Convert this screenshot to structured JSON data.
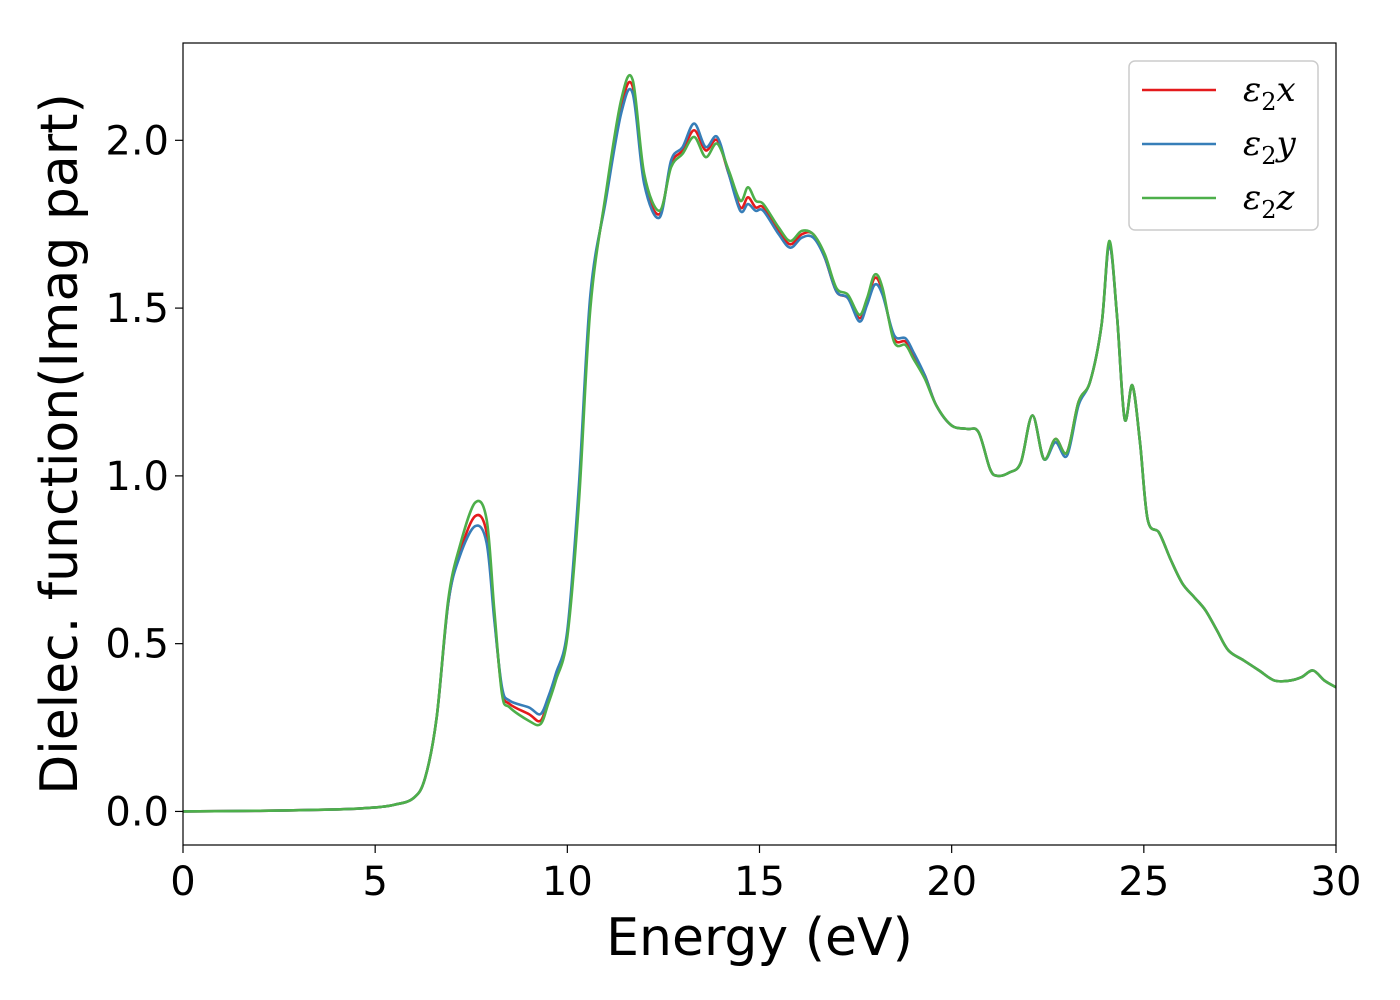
{
  "chart_data": {
    "type": "line",
    "title": "",
    "xlabel": "Energy (eV)",
    "ylabel": "Dielec. function(Imag part)",
    "xlim": [
      0,
      30
    ],
    "ylim": [
      -0.1,
      2.29
    ],
    "xticks": [
      "0",
      "5",
      "10",
      "15",
      "20",
      "25",
      "30"
    ],
    "yticks": [
      "0.0",
      "0.5",
      "1.0",
      "1.5",
      "2.0"
    ],
    "grid": false,
    "legend_position": "top-right",
    "series": [
      {
        "name": "x",
        "legend_main": "ε",
        "legend_sub": "2",
        "legend_tail": "x",
        "color": "#e41a1c",
        "x": [
          0,
          2,
          4,
          5,
          5.5,
          6,
          6.3,
          6.6,
          6.9,
          7.2,
          7.6,
          7.9,
          8.1,
          8.3,
          8.5,
          9.0,
          9.3,
          9.5,
          9.7,
          10.0,
          10.3,
          10.6,
          11.0,
          11.4,
          11.7,
          12.0,
          12.4,
          12.7,
          13.0,
          13.3,
          13.6,
          13.9,
          14.2,
          14.5,
          14.7,
          14.9,
          15.1,
          15.5,
          15.8,
          16.1,
          16.4,
          16.7,
          17.0,
          17.3,
          17.6,
          17.8,
          18.0,
          18.2,
          18.5,
          18.8,
          19.0,
          19.3,
          19.6,
          20.0,
          20.4,
          20.7,
          21.0,
          21.2,
          21.5,
          21.8,
          22.1,
          22.4,
          22.7,
          23.0,
          23.3,
          23.6,
          23.9,
          24.1,
          24.3,
          24.5,
          24.7,
          24.9,
          25.1,
          25.4,
          25.7,
          26.0,
          26.3,
          26.6,
          26.9,
          27.2,
          27.6,
          28.0,
          28.4,
          28.8,
          29.1,
          29.4,
          29.7,
          30
        ],
        "y": [
          0.0,
          0.002,
          0.006,
          0.012,
          0.02,
          0.04,
          0.1,
          0.28,
          0.62,
          0.77,
          0.88,
          0.83,
          0.58,
          0.36,
          0.32,
          0.29,
          0.27,
          0.33,
          0.4,
          0.53,
          0.95,
          1.52,
          1.83,
          2.1,
          2.16,
          1.88,
          1.78,
          1.93,
          1.97,
          2.03,
          1.97,
          2.0,
          1.9,
          1.8,
          1.83,
          1.8,
          1.8,
          1.73,
          1.69,
          1.72,
          1.72,
          1.65,
          1.55,
          1.53,
          1.47,
          1.52,
          1.59,
          1.55,
          1.41,
          1.4,
          1.36,
          1.3,
          1.21,
          1.15,
          1.14,
          1.13,
          1.02,
          1.0,
          1.01,
          1.04,
          1.18,
          1.05,
          1.11,
          1.07,
          1.22,
          1.28,
          1.45,
          1.69,
          1.48,
          1.17,
          1.27,
          1.1,
          0.87,
          0.83,
          0.75,
          0.68,
          0.64,
          0.6,
          0.54,
          0.48,
          0.45,
          0.42,
          0.39,
          0.39,
          0.4,
          0.42,
          0.39,
          0.37
        ]
      },
      {
        "name": "y",
        "legend_main": "ε",
        "legend_sub": "2",
        "legend_tail": "y",
        "color": "#377eb8",
        "x": [
          0,
          2,
          4,
          5,
          5.5,
          6,
          6.3,
          6.6,
          6.9,
          7.2,
          7.6,
          7.9,
          8.1,
          8.3,
          8.5,
          9.0,
          9.3,
          9.5,
          9.7,
          10.0,
          10.3,
          10.6,
          11.0,
          11.4,
          11.7,
          12.0,
          12.4,
          12.7,
          13.0,
          13.3,
          13.6,
          13.9,
          14.2,
          14.5,
          14.7,
          14.9,
          15.1,
          15.5,
          15.8,
          16.1,
          16.4,
          16.7,
          17.0,
          17.3,
          17.6,
          17.8,
          18.0,
          18.2,
          18.5,
          18.8,
          19.0,
          19.3,
          19.6,
          20.0,
          20.4,
          20.7,
          21.0,
          21.2,
          21.5,
          21.8,
          22.1,
          22.4,
          22.7,
          23.0,
          23.3,
          23.6,
          23.9,
          24.1,
          24.3,
          24.5,
          24.7,
          24.9,
          25.1,
          25.4,
          25.7,
          26.0,
          26.3,
          26.6,
          26.9,
          27.2,
          27.6,
          28.0,
          28.4,
          28.8,
          29.1,
          29.4,
          29.7,
          30
        ],
        "y": [
          0.0,
          0.002,
          0.006,
          0.012,
          0.02,
          0.04,
          0.1,
          0.28,
          0.62,
          0.76,
          0.85,
          0.8,
          0.57,
          0.37,
          0.33,
          0.31,
          0.29,
          0.34,
          0.41,
          0.54,
          0.97,
          1.54,
          1.82,
          2.08,
          2.14,
          1.87,
          1.77,
          1.94,
          1.98,
          2.05,
          1.98,
          2.01,
          1.9,
          1.79,
          1.81,
          1.79,
          1.79,
          1.72,
          1.68,
          1.71,
          1.71,
          1.65,
          1.55,
          1.53,
          1.46,
          1.51,
          1.57,
          1.54,
          1.42,
          1.41,
          1.37,
          1.3,
          1.21,
          1.15,
          1.14,
          1.13,
          1.02,
          1.0,
          1.01,
          1.04,
          1.18,
          1.05,
          1.1,
          1.06,
          1.21,
          1.28,
          1.45,
          1.69,
          1.48,
          1.17,
          1.27,
          1.1,
          0.87,
          0.83,
          0.75,
          0.68,
          0.64,
          0.6,
          0.54,
          0.48,
          0.45,
          0.42,
          0.39,
          0.39,
          0.4,
          0.42,
          0.39,
          0.37
        ]
      },
      {
        "name": "z",
        "legend_main": "ε",
        "legend_sub": "2",
        "legend_tail": "z",
        "color": "#4daf4a",
        "x": [
          0,
          2,
          4,
          5,
          5.5,
          6,
          6.3,
          6.6,
          6.9,
          7.2,
          7.6,
          7.9,
          8.1,
          8.3,
          8.5,
          9.0,
          9.3,
          9.5,
          9.7,
          10.0,
          10.3,
          10.6,
          11.0,
          11.4,
          11.7,
          12.0,
          12.4,
          12.7,
          13.0,
          13.3,
          13.6,
          13.9,
          14.2,
          14.5,
          14.7,
          14.9,
          15.1,
          15.5,
          15.8,
          16.1,
          16.4,
          16.7,
          17.0,
          17.3,
          17.6,
          17.8,
          18.0,
          18.2,
          18.5,
          18.8,
          19.0,
          19.3,
          19.6,
          20.0,
          20.4,
          20.7,
          21.0,
          21.2,
          21.5,
          21.8,
          22.1,
          22.4,
          22.7,
          23.0,
          23.3,
          23.6,
          23.9,
          24.1,
          24.3,
          24.5,
          24.7,
          24.9,
          25.1,
          25.4,
          25.7,
          26.0,
          26.3,
          26.6,
          26.9,
          27.2,
          27.6,
          28.0,
          28.4,
          28.8,
          29.1,
          29.4,
          29.7,
          30
        ],
        "y": [
          0.0,
          0.002,
          0.006,
          0.012,
          0.02,
          0.04,
          0.1,
          0.28,
          0.63,
          0.79,
          0.92,
          0.87,
          0.6,
          0.35,
          0.31,
          0.27,
          0.26,
          0.32,
          0.39,
          0.52,
          0.92,
          1.5,
          1.84,
          2.12,
          2.18,
          1.9,
          1.79,
          1.92,
          1.96,
          2.01,
          1.95,
          1.99,
          1.91,
          1.82,
          1.86,
          1.82,
          1.81,
          1.74,
          1.7,
          1.73,
          1.72,
          1.66,
          1.56,
          1.54,
          1.48,
          1.53,
          1.6,
          1.56,
          1.4,
          1.39,
          1.35,
          1.29,
          1.21,
          1.15,
          1.14,
          1.13,
          1.02,
          1.0,
          1.01,
          1.04,
          1.18,
          1.05,
          1.11,
          1.07,
          1.22,
          1.28,
          1.45,
          1.7,
          1.48,
          1.17,
          1.27,
          1.1,
          0.87,
          0.83,
          0.75,
          0.68,
          0.64,
          0.6,
          0.54,
          0.48,
          0.45,
          0.42,
          0.39,
          0.39,
          0.4,
          0.42,
          0.39,
          0.37
        ]
      }
    ]
  }
}
